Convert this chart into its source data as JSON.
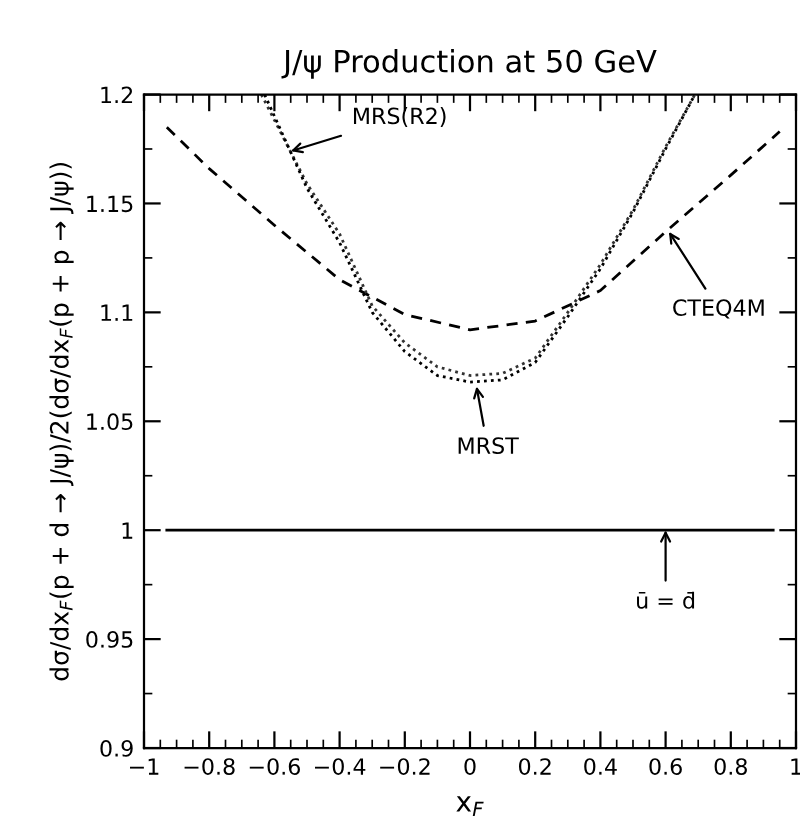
{
  "chart_data": {
    "type": "line",
    "title": "J/ψ Production at 50 GeV",
    "xlabel": "x$_{F}$",
    "ylabel": "dσ/dx$_{F}$(p + d → J/ψ)/2(dσ/dx$_{F}$(p + p → J/ψ))",
    "xlim": [
      -1,
      1
    ],
    "xticks": [
      -1,
      -0.8,
      -0.6,
      -0.4,
      -0.2,
      0,
      0.2,
      0.4,
      0.6,
      0.8,
      1
    ],
    "ylim": [
      0.9,
      1.2
    ],
    "yticks": [
      0.9,
      0.95,
      1,
      1.05,
      1.1,
      1.15,
      1.2
    ],
    "grid": false,
    "legend": false,
    "marker": "none",
    "series": [
      {
        "color": "#000000",
        "line_style": "dashed",
        "x": [
          -0.93,
          -0.8,
          -0.6,
          -0.4,
          -0.2,
          0,
          0.2,
          0.4,
          0.6,
          0.8,
          0.95
        ],
        "values": [
          1.185,
          1.166,
          1.14,
          1.115,
          1.099,
          1.092,
          1.096,
          1.11,
          1.137,
          1.163,
          1.183
        ]
      },
      {
        "color": "#333333",
        "line_style": "dotted",
        "x": [
          -0.64,
          -0.5,
          -0.4,
          -0.3,
          -0.2,
          -0.1,
          0,
          0.1,
          0.2,
          0.3,
          0.4,
          0.5,
          0.6,
          0.69
        ],
        "values": [
          1.2,
          1.159,
          1.136,
          1.103,
          1.086,
          1.075,
          1.071,
          1.072,
          1.079,
          1.1,
          1.122,
          1.147,
          1.176,
          1.2
        ]
      },
      {
        "color": "#000000",
        "line_style": "dotted",
        "x": [
          -0.63,
          -0.5,
          -0.4,
          -0.3,
          -0.2,
          -0.1,
          0,
          0.1,
          0.2,
          0.3,
          0.4,
          0.5,
          0.6,
          0.69
        ],
        "values": [
          1.2,
          1.157,
          1.132,
          1.1,
          1.082,
          1.071,
          1.068,
          1.069,
          1.077,
          1.098,
          1.12,
          1.146,
          1.175,
          1.2
        ]
      },
      {
        "color": "#000000",
        "line_style": "solid",
        "x": [
          -0.93,
          0.93
        ],
        "values": [
          1.0,
          1.0
        ]
      }
    ],
    "annotations": [
      {
        "text": "MRS(R2)",
        "x": -0.55,
        "y": 1.174
      },
      {
        "text": "CTEQ4M",
        "x": 0.61,
        "y": 1.137
      },
      {
        "text": "MRST",
        "x": 0.02,
        "y": 1.066
      },
      {
        "text": "ū = d̄",
        "x": 0.6,
        "y": 1.0
      }
    ]
  }
}
